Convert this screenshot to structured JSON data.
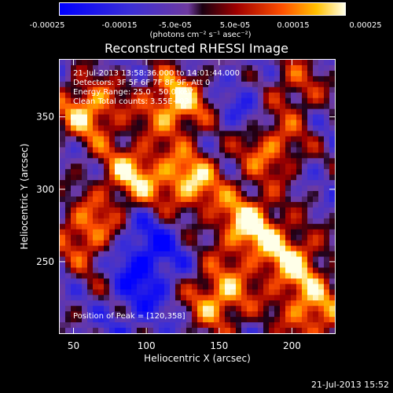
{
  "colorbar": {
    "ticks": [
      "-0.00025",
      "-0.00015",
      "-5.0e-05",
      "5.0e-05",
      "0.00015",
      "0.00025"
    ],
    "unit": "(photons cm⁻² s⁻¹ asec⁻²)"
  },
  "info": {
    "time_range": "21-Jul-2013 13:58:36.000 to 14:01:44.000",
    "detectors": "Detectors: 3F 5F 6F 7F 8F 9F, Att 0",
    "energy": "Energy Range: 25.0 - 50.0 keV",
    "clean": "Clean   Total counts: 3.55E+03",
    "peak": "Position of Peak = [120,358]"
  },
  "footer": {
    "timestamp": "21-Jul-2013 15:52"
  },
  "colors": {
    "low": "#0000ff",
    "mid": "#5a2fa0",
    "high": "#ffffd0"
  },
  "chart_data": {
    "type": "heatmap",
    "title": "Reconstructed RHESSI Image",
    "xlabel": "Heliocentric X (arcsec)",
    "ylabel": "Heliocentric Y (arcsec)",
    "xlim": [
      40,
      230
    ],
    "ylim": [
      200,
      390
    ],
    "xticks": [
      50,
      100,
      150,
      200
    ],
    "yticks": [
      250,
      300,
      350
    ],
    "colorbar_range": [
      -0.00025,
      0.00025
    ],
    "peak_position": [
      120,
      358
    ],
    "hot_regions": [
      {
        "x": 60,
        "y": 355,
        "level": 0.9
      },
      {
        "x": 120,
        "y": 360,
        "level": 1.0
      },
      {
        "x": 90,
        "y": 310,
        "level": 0.85
      },
      {
        "x": 130,
        "y": 305,
        "level": 0.9
      },
      {
        "x": 170,
        "y": 275,
        "level": 1.0
      },
      {
        "x": 185,
        "y": 330,
        "level": 0.8
      },
      {
        "x": 200,
        "y": 250,
        "level": 0.85
      },
      {
        "x": 60,
        "y": 270,
        "level": 0.8
      },
      {
        "x": 75,
        "y": 230,
        "level": 0.6
      },
      {
        "x": 150,
        "y": 225,
        "level": 0.9
      },
      {
        "x": 215,
        "y": 215,
        "level": 0.8
      },
      {
        "x": 200,
        "y": 370,
        "level": 0.6
      }
    ],
    "cold_regions": [
      {
        "x": 85,
        "y": 230,
        "level": -1.0
      },
      {
        "x": 175,
        "y": 355,
        "level": -0.5
      },
      {
        "x": 100,
        "y": 260,
        "level": -0.6
      }
    ]
  }
}
